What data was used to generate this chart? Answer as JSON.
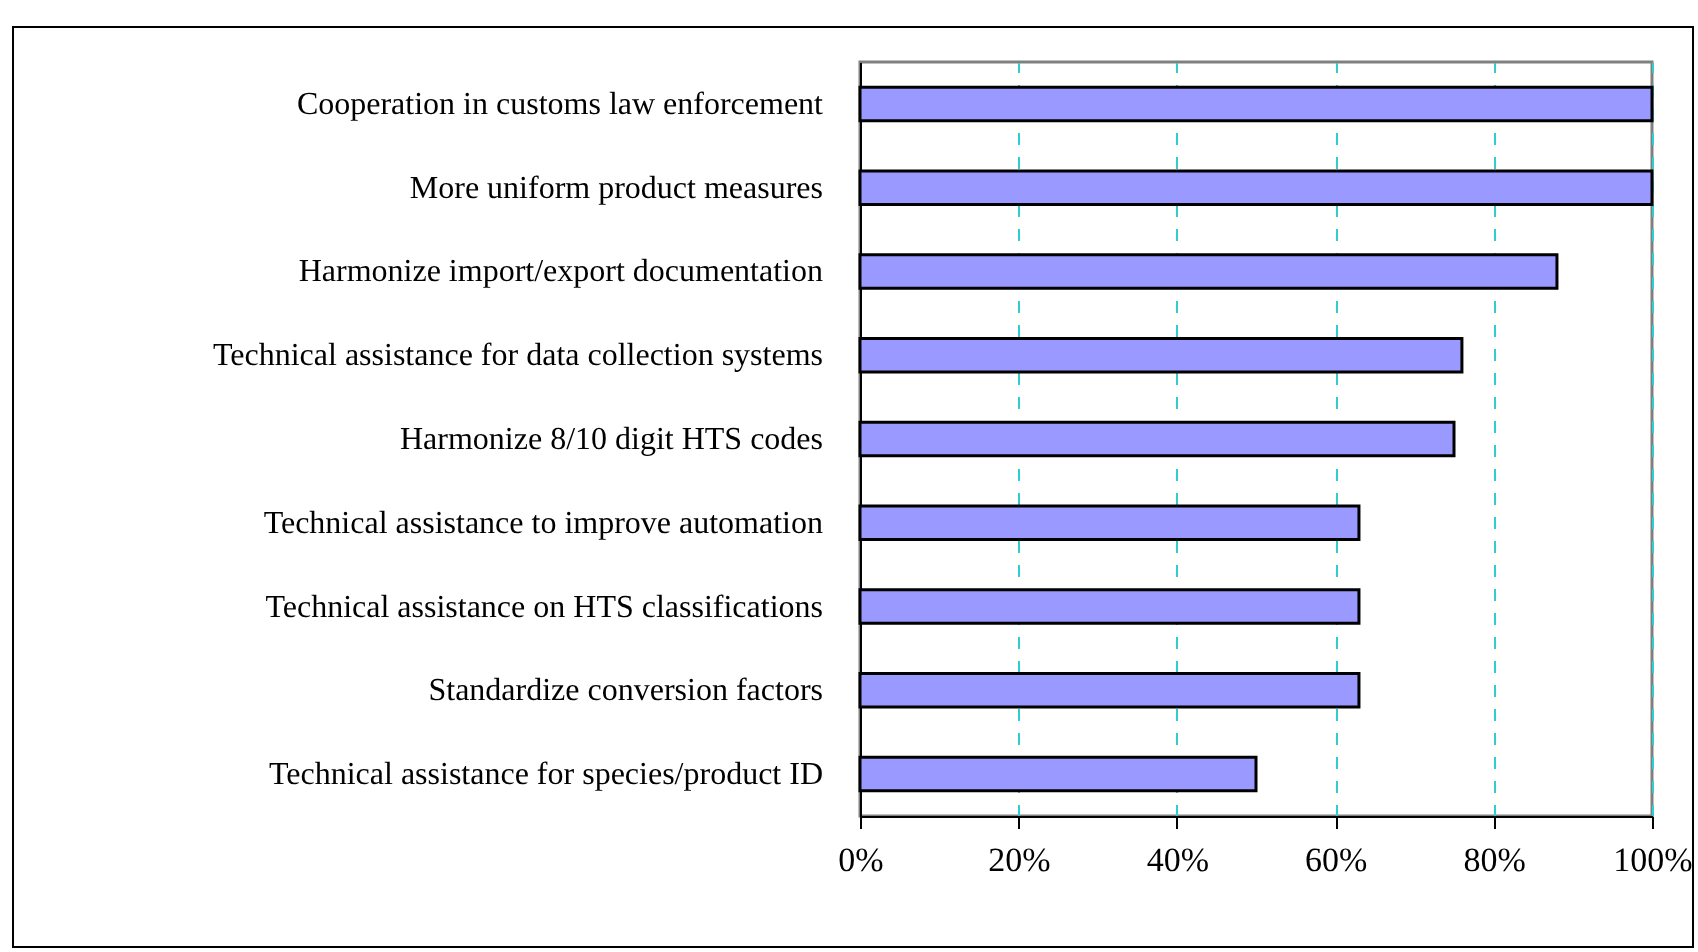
{
  "chart_data": {
    "type": "bar",
    "orientation": "horizontal",
    "categories": [
      "Cooperation in customs law enforcement",
      "More uniform product measures",
      "Harmonize import/export documentation",
      "Technical assistance for data collection systems",
      "Harmonize 8/10 digit HTS codes",
      "Technical assistance to improve automation",
      "Technical assistance on HTS classifications",
      "Standardize conversion factors",
      "Technical assistance for species/product ID"
    ],
    "values": [
      100,
      100,
      88,
      76,
      75,
      63,
      63,
      63,
      50
    ],
    "color": "#9999ff",
    "xlim": [
      0,
      100
    ],
    "xticks": [
      {
        "value": 0,
        "label": "0%"
      },
      {
        "value": 20,
        "label": "20%"
      },
      {
        "value": 40,
        "label": "40%"
      },
      {
        "value": 60,
        "label": "60%"
      },
      {
        "value": 80,
        "label": "80%"
      },
      {
        "value": 100,
        "label": "100%"
      }
    ],
    "grid": "x"
  }
}
